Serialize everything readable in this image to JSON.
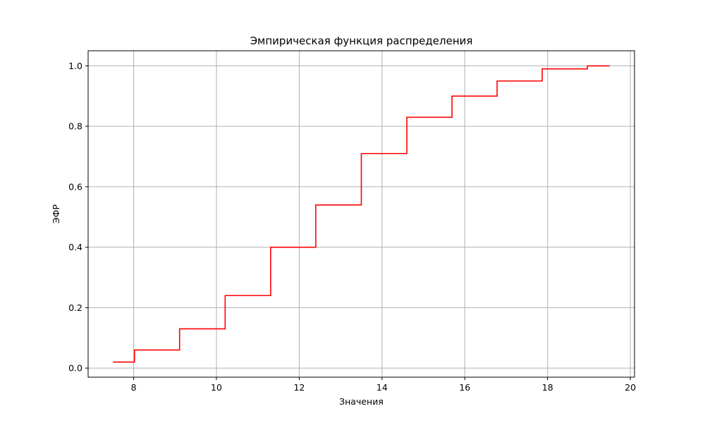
{
  "chart_data": {
    "type": "line",
    "step": "post",
    "title": "Эмпирическая функция распределения",
    "xlabel": "Значения",
    "ylabel": "ЭФР",
    "xlim": [
      6.9,
      20.1
    ],
    "ylim": [
      -0.03,
      1.05
    ],
    "grid": true,
    "x_ticks": [
      8,
      10,
      12,
      14,
      16,
      18,
      20
    ],
    "x_tick_labels": [
      "8",
      "10",
      "12",
      "14",
      "16",
      "18",
      "20"
    ],
    "y_ticks": [
      0.0,
      0.2,
      0.4,
      0.6,
      0.8,
      1.0
    ],
    "y_tick_labels": [
      "0.0",
      "0.2",
      "0.4",
      "0.6",
      "0.8",
      "1.0"
    ],
    "line_color": "#ff0000",
    "grid_color": "#b0b0b0",
    "series": [
      {
        "x": [
          7.5,
          8.02,
          9.11,
          10.21,
          11.31,
          12.4,
          13.5,
          14.6,
          15.69,
          16.78,
          17.87,
          18.96,
          19.5
        ],
        "y": [
          0.02,
          0.06,
          0.13,
          0.24,
          0.4,
          0.54,
          0.71,
          0.83,
          0.9,
          0.95,
          0.99,
          1.0,
          1.0
        ]
      }
    ]
  }
}
